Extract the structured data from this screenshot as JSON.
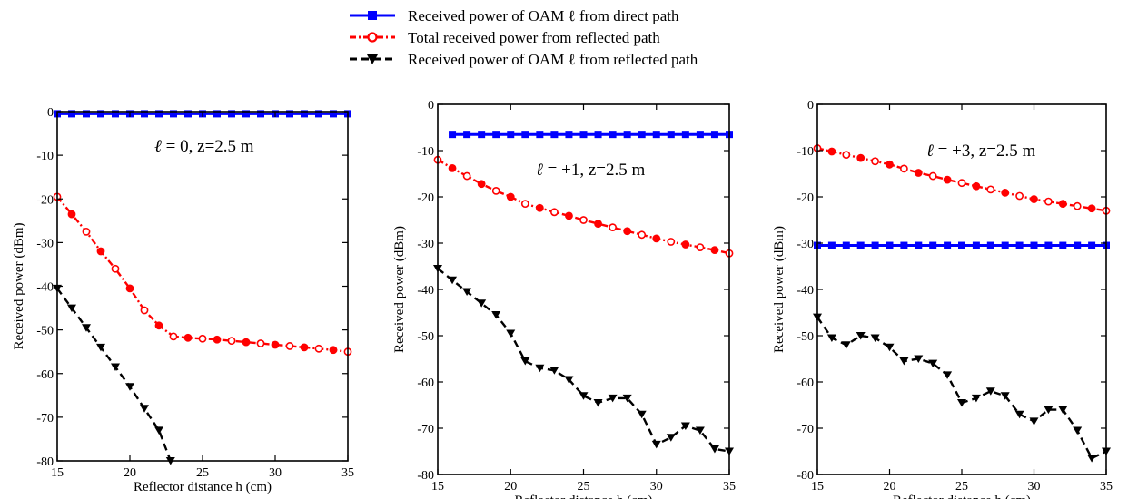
{
  "legend": {
    "items": [
      {
        "label": "Received power of OAM ℓ from direct path",
        "color": "#0000ff",
        "marker": "square",
        "dash": "solid"
      },
      {
        "label": "Total received power from reflected path",
        "color": "#ff0000",
        "marker": "circle",
        "dash": "dashdot"
      },
      {
        "label": "Received power of OAM ℓ from reflected path",
        "color": "#000000",
        "marker": "triangle-down",
        "dash": "dashed"
      }
    ]
  },
  "chart_data": [
    {
      "type": "line",
      "annotation": {
        "ell": "ℓ",
        "rest": " = 0, z=2.5 m"
      },
      "xlabel": "Reflector distance h (cm)",
      "ylabel": "Received power (dBm)",
      "xlim": [
        15,
        35
      ],
      "ylim": [
        -80,
        0
      ],
      "xticks": [
        15,
        20,
        25,
        30,
        35
      ],
      "yticks": [
        0,
        -10,
        -20,
        -30,
        -40,
        -50,
        -60,
        -70,
        -80
      ],
      "series": [
        {
          "x": [
            15,
            16,
            17,
            18,
            19,
            20,
            21,
            22,
            23,
            24,
            25,
            26,
            27,
            28,
            29,
            30,
            31,
            32,
            33,
            34,
            35
          ],
          "y": [
            -0.5,
            -0.5,
            -0.5,
            -0.5,
            -0.5,
            -0.5,
            -0.5,
            -0.5,
            -0.5,
            -0.5,
            -0.5,
            -0.5,
            -0.5,
            -0.5,
            -0.5,
            -0.5,
            -0.5,
            -0.5,
            -0.5,
            -0.5,
            -0.5
          ]
        },
        {
          "x": [
            15,
            16,
            17,
            18,
            19,
            20,
            21,
            22,
            23,
            24,
            25,
            26,
            27,
            28,
            29,
            30,
            31,
            32,
            33,
            34,
            35
          ],
          "y": [
            -19.5,
            -23.5,
            -27.5,
            -32,
            -36,
            -40.5,
            -45.5,
            -49,
            -51.5,
            -51.8,
            -52,
            -52.2,
            -52.5,
            -52.8,
            -53.1,
            -53.4,
            -53.7,
            -54,
            -54.3,
            -54.6,
            -55
          ]
        },
        {
          "x": [
            15,
            16,
            17,
            18,
            19,
            20,
            21,
            22,
            22.8
          ],
          "y": [
            -40.5,
            -45,
            -49.5,
            -54,
            -58.5,
            -63,
            -68,
            -73,
            -80
          ]
        }
      ]
    },
    {
      "type": "line",
      "annotation": {
        "ell": "ℓ",
        "rest": " = +1, z=2.5 m"
      },
      "xlabel": "Reflector distance h (cm)",
      "ylabel": "Received power (dBm)",
      "xlim": [
        15,
        35
      ],
      "ylim": [
        -80,
        0
      ],
      "xticks": [
        15,
        20,
        25,
        30,
        35
      ],
      "yticks": [
        0,
        -10,
        -20,
        -30,
        -40,
        -50,
        -60,
        -70,
        -80
      ],
      "series": [
        {
          "x": [
            16,
            17,
            18,
            19,
            20,
            21,
            22,
            23,
            24,
            25,
            26,
            27,
            28,
            29,
            30,
            31,
            32,
            33,
            34,
            35
          ],
          "y": [
            -6.5,
            -6.5,
            -6.5,
            -6.5,
            -6.5,
            -6.5,
            -6.5,
            -6.5,
            -6.5,
            -6.5,
            -6.5,
            -6.5,
            -6.5,
            -6.5,
            -6.5,
            -6.5,
            -6.5,
            -6.5,
            -6.5,
            -6.5
          ]
        },
        {
          "x": [
            15,
            16,
            17,
            18,
            19,
            20,
            21,
            22,
            23,
            24,
            25,
            26,
            27,
            28,
            29,
            30,
            31,
            32,
            33,
            34,
            35
          ],
          "y": [
            -12,
            -13.8,
            -15.5,
            -17.2,
            -18.7,
            -20,
            -21.5,
            -22.4,
            -23.3,
            -24.1,
            -25,
            -25.8,
            -26.6,
            -27.4,
            -28.2,
            -29,
            -29.7,
            -30.3,
            -30.9,
            -31.5,
            -32.2
          ]
        },
        {
          "x": [
            15,
            16,
            17,
            18,
            19,
            20,
            21,
            22,
            23,
            24,
            25,
            26,
            27,
            28,
            29,
            30,
            31,
            32,
            33,
            34,
            35
          ],
          "y": [
            -35.5,
            -38,
            -40.5,
            -43,
            -45.5,
            -49.5,
            -55.5,
            -57,
            -57.5,
            -59.5,
            -63,
            -64.5,
            -63.5,
            -63.5,
            -67,
            -73.5,
            -72,
            -69.5,
            -70.5,
            -74.5,
            -75
          ]
        }
      ]
    },
    {
      "type": "line",
      "annotation": {
        "ell": "ℓ",
        "rest": " = +3, z=2.5 m"
      },
      "xlabel": "Reflector distance h (cm)",
      "ylabel": "Received power (dBm)",
      "xlim": [
        15,
        35
      ],
      "ylim": [
        -80,
        0
      ],
      "xticks": [
        15,
        20,
        25,
        30,
        35
      ],
      "yticks": [
        0,
        -10,
        -20,
        -30,
        -40,
        -50,
        -60,
        -70,
        -80
      ],
      "series": [
        {
          "x": [
            15,
            16,
            17,
            18,
            19,
            20,
            21,
            22,
            23,
            24,
            25,
            26,
            27,
            28,
            29,
            30,
            31,
            32,
            33,
            34,
            35
          ],
          "y": [
            -30.5,
            -30.5,
            -30.5,
            -30.5,
            -30.5,
            -30.5,
            -30.5,
            -30.5,
            -30.5,
            -30.5,
            -30.5,
            -30.5,
            -30.5,
            -30.5,
            -30.5,
            -30.5,
            -30.5,
            -30.5,
            -30.5,
            -30.5,
            -30.5
          ]
        },
        {
          "x": [
            15,
            16,
            17,
            18,
            19,
            20,
            21,
            22,
            23,
            24,
            25,
            26,
            27,
            28,
            29,
            30,
            31,
            32,
            33,
            34,
            35
          ],
          "y": [
            -9.5,
            -10.2,
            -10.9,
            -11.6,
            -12.3,
            -13,
            -13.9,
            -14.8,
            -15.5,
            -16.3,
            -17,
            -17.7,
            -18.4,
            -19.1,
            -19.8,
            -20.5,
            -21,
            -21.5,
            -22,
            -22.5,
            -23
          ]
        },
        {
          "x": [
            15,
            16,
            17,
            18,
            19,
            20,
            21,
            22,
            23,
            24,
            25,
            26,
            27,
            28,
            29,
            30,
            31,
            32,
            33,
            34,
            35
          ],
          "y": [
            -46,
            -50.5,
            -52,
            -50,
            -50.5,
            -52.5,
            -55.5,
            -55,
            -56,
            -58.5,
            -64.5,
            -63.5,
            -62,
            -63,
            -67,
            -68.5,
            -66,
            -66,
            -70.5,
            -76.5,
            -75
          ]
        }
      ]
    }
  ]
}
